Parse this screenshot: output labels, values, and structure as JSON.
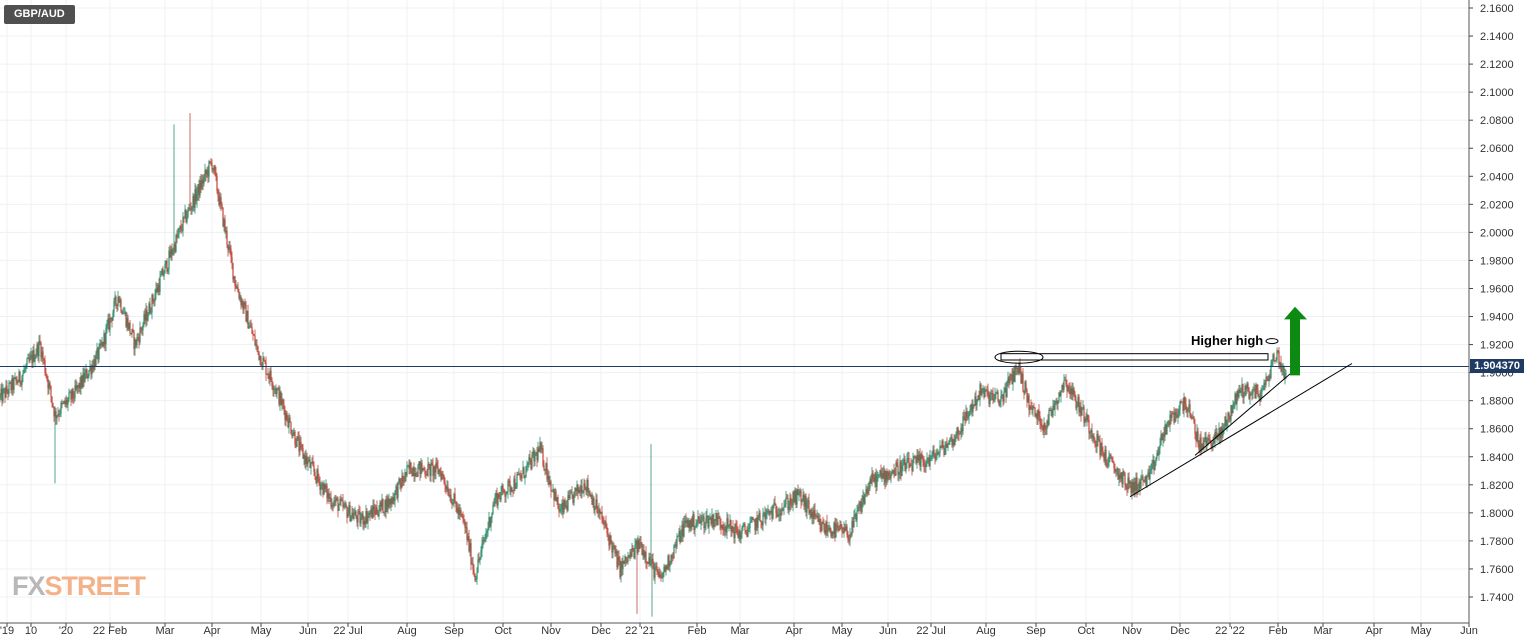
{
  "symbol": "GBP/AUD",
  "current_price": "1.904370",
  "watermark": {
    "prefix": "FX",
    "suffix": "STREET"
  },
  "colors": {
    "up": "#2a8f6e",
    "down": "#c0463a",
    "price_line": "#1f3a63",
    "arrow": "#0d8a12"
  },
  "chart_data": {
    "type": "candlestick",
    "title": "GBP/AUD",
    "y_ticks": [
      "2.1600",
      "2.1400",
      "2.1200",
      "2.1000",
      "2.0800",
      "2.0600",
      "2.0400",
      "2.0200",
      "2.0000",
      "1.9800",
      "1.9600",
      "1.9400",
      "1.9200",
      "1.9000",
      "1.8800",
      "1.8600",
      "1.8400",
      "1.8200",
      "1.8000",
      "1.7800",
      "1.7600",
      "1.7400"
    ],
    "ylim": [
      1.726,
      2.164
    ],
    "x_labels": [
      "'19",
      "10",
      "'20",
      "22 Feb",
      "Mar",
      "Apr",
      "May",
      "Jun",
      "22 Jul",
      "Aug",
      "Sep",
      "Oct",
      "Nov",
      "Dec",
      "22 '21",
      "Feb",
      "Mar",
      "Apr",
      "May",
      "Jun",
      "22 Jul",
      "Aug",
      "Sep",
      "Oct",
      "Nov",
      "Dec",
      "22 '22",
      "Feb",
      "Mar",
      "Apr",
      "May",
      "Jun"
    ],
    "price_path": [
      {
        "i": 0,
        "p": 1.882
      },
      {
        "i": 20,
        "p": 1.896
      },
      {
        "i": 40,
        "p": 1.92
      },
      {
        "i": 55,
        "p": 1.87
      },
      {
        "i": 75,
        "p": 1.885
      },
      {
        "i": 100,
        "p": 1.915
      },
      {
        "i": 118,
        "p": 1.955
      },
      {
        "i": 135,
        "p": 1.92
      },
      {
        "i": 160,
        "p": 1.965
      },
      {
        "i": 185,
        "p": 2.01
      },
      {
        "i": 212,
        "p": 2.05
      },
      {
        "i": 235,
        "p": 1.965
      },
      {
        "i": 258,
        "p": 1.915
      },
      {
        "i": 275,
        "p": 1.89
      },
      {
        "i": 300,
        "p": 1.845
      },
      {
        "i": 330,
        "p": 1.81
      },
      {
        "i": 360,
        "p": 1.795
      },
      {
        "i": 390,
        "p": 1.808
      },
      {
        "i": 410,
        "p": 1.832
      },
      {
        "i": 440,
        "p": 1.83
      },
      {
        "i": 465,
        "p": 1.79
      },
      {
        "i": 475,
        "p": 1.755
      },
      {
        "i": 495,
        "p": 1.81
      },
      {
        "i": 520,
        "p": 1.825
      },
      {
        "i": 540,
        "p": 1.845
      },
      {
        "i": 560,
        "p": 1.8
      },
      {
        "i": 585,
        "p": 1.822
      },
      {
        "i": 605,
        "p": 1.79
      },
      {
        "i": 620,
        "p": 1.76
      },
      {
        "i": 640,
        "p": 1.778
      },
      {
        "i": 660,
        "p": 1.752
      },
      {
        "i": 685,
        "p": 1.792
      },
      {
        "i": 715,
        "p": 1.796
      },
      {
        "i": 740,
        "p": 1.785
      },
      {
        "i": 770,
        "p": 1.8
      },
      {
        "i": 800,
        "p": 1.812
      },
      {
        "i": 820,
        "p": 1.79
      },
      {
        "i": 850,
        "p": 1.785
      },
      {
        "i": 870,
        "p": 1.822
      },
      {
        "i": 900,
        "p": 1.832
      },
      {
        "i": 930,
        "p": 1.838
      },
      {
        "i": 955,
        "p": 1.854
      },
      {
        "i": 980,
        "p": 1.886
      },
      {
        "i": 1000,
        "p": 1.88
      },
      {
        "i": 1018,
        "p": 1.905
      },
      {
        "i": 1030,
        "p": 1.875
      },
      {
        "i": 1045,
        "p": 1.862
      },
      {
        "i": 1065,
        "p": 1.895
      },
      {
        "i": 1085,
        "p": 1.868
      },
      {
        "i": 1105,
        "p": 1.84
      },
      {
        "i": 1130,
        "p": 1.818
      },
      {
        "i": 1150,
        "p": 1.825
      },
      {
        "i": 1165,
        "p": 1.86
      },
      {
        "i": 1185,
        "p": 1.88
      },
      {
        "i": 1200,
        "p": 1.848
      },
      {
        "i": 1220,
        "p": 1.855
      },
      {
        "i": 1240,
        "p": 1.888
      },
      {
        "i": 1262,
        "p": 1.885
      },
      {
        "i": 1276,
        "p": 1.914
      },
      {
        "i": 1286,
        "p": 1.897
      }
    ],
    "spikes": [
      {
        "i": 55,
        "low": 1.821
      },
      {
        "i": 174,
        "high": 2.077
      },
      {
        "i": 190,
        "high": 2.085
      },
      {
        "i": 637,
        "low": 1.728
      },
      {
        "i": 651,
        "high": 1.849
      },
      {
        "i": 652,
        "low": 1.726
      }
    ],
    "annotations": {
      "higher_high_label": "Higher high"
    }
  }
}
